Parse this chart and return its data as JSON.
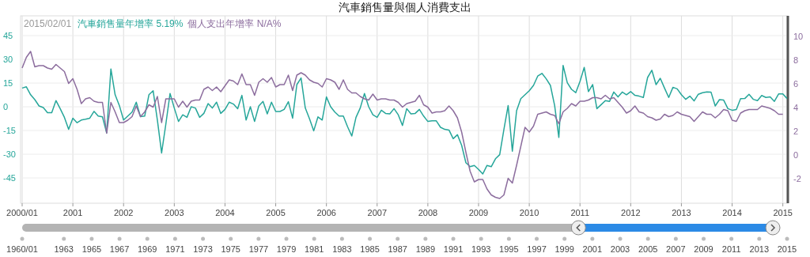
{
  "chart_data": [
    {
      "type": "line",
      "title": "汽車銷售量與個人消費支出",
      "annotations": [
        "2015/02/01"
      ],
      "legend": "top left",
      "grid": true,
      "marker": "none",
      "line_style": "solid",
      "x": [
        "2000-01",
        "2000-02",
        "2000-03",
        "2000-04",
        "2000-05",
        "2000-06",
        "2000-07",
        "2000-08",
        "2000-09",
        "2000-10",
        "2000-11",
        "2000-12",
        "2001-01",
        "2001-02",
        "2001-03",
        "2001-04",
        "2001-05",
        "2001-06",
        "2001-07",
        "2001-08",
        "2001-09",
        "2001-10",
        "2001-11",
        "2001-12",
        "2002-01",
        "2002-02",
        "2002-03",
        "2002-04",
        "2002-05",
        "2002-06",
        "2002-07",
        "2002-08",
        "2002-09",
        "2002-10",
        "2002-11",
        "2002-12",
        "2003-01",
        "2003-02",
        "2003-03",
        "2003-04",
        "2003-05",
        "2003-06",
        "2003-07",
        "2003-08",
        "2003-09",
        "2003-10",
        "2003-11",
        "2003-12",
        "2004-01",
        "2004-02",
        "2004-03",
        "2004-04",
        "2004-05",
        "2004-06",
        "2004-07",
        "2004-08",
        "2004-09",
        "2004-10",
        "2004-11",
        "2004-12",
        "2005-01",
        "2005-02",
        "2005-03",
        "2005-04",
        "2005-05",
        "2005-06",
        "2005-07",
        "2005-08",
        "2005-09",
        "2005-10",
        "2005-11",
        "2005-12",
        "2006-01",
        "2006-02",
        "2006-03",
        "2006-04",
        "2006-05",
        "2006-06",
        "2006-07",
        "2006-08",
        "2006-09",
        "2006-10",
        "2006-11",
        "2006-12",
        "2007-01",
        "2007-02",
        "2007-03",
        "2007-04",
        "2007-05",
        "2007-06",
        "2007-07",
        "2007-08",
        "2007-09",
        "2007-10",
        "2007-11",
        "2007-12",
        "2008-01",
        "2008-02",
        "2008-03",
        "2008-04",
        "2008-05",
        "2008-06",
        "2008-07",
        "2008-08",
        "2008-09",
        "2008-10",
        "2008-11",
        "2008-12",
        "2009-01",
        "2009-02",
        "2009-03",
        "2009-04",
        "2009-05",
        "2009-06",
        "2009-07",
        "2009-08",
        "2009-09",
        "2009-10",
        "2009-11",
        "2009-12",
        "2010-01",
        "2010-02",
        "2010-03",
        "2010-04",
        "2010-05",
        "2010-06",
        "2010-07",
        "2010-08",
        "2010-09",
        "2010-10",
        "2010-11",
        "2010-12",
        "2011-01",
        "2011-02",
        "2011-03",
        "2011-04",
        "2011-05",
        "2011-06",
        "2011-07",
        "2011-08",
        "2011-09",
        "2011-10",
        "2011-11",
        "2011-12",
        "2012-01",
        "2012-02",
        "2012-03",
        "2012-04",
        "2012-05",
        "2012-06",
        "2012-07",
        "2012-08",
        "2012-09",
        "2012-10",
        "2012-11",
        "2012-12",
        "2013-01",
        "2013-02",
        "2013-03",
        "2013-04",
        "2013-05",
        "2013-06",
        "2013-07",
        "2013-08",
        "2013-09",
        "2013-10",
        "2013-11",
        "2013-12",
        "2014-01",
        "2014-02",
        "2014-03",
        "2014-04",
        "2014-05",
        "2014-06",
        "2014-07",
        "2014-08",
        "2014-09",
        "2014-10",
        "2014-11",
        "2014-12",
        "2015-01",
        "2015-02"
      ],
      "xlim": [
        "2000-01",
        "2015-02"
      ],
      "xticks": [
        {
          "value": "2000-01",
          "label": "2000/01"
        },
        "2001",
        "2002",
        "2003",
        "2004",
        "2005",
        "2006",
        "2007",
        "2008",
        "2009",
        "2010",
        "2011",
        "2012",
        "2013",
        "2014",
        "2015"
      ],
      "ylim": [
        -61,
        57.5
      ],
      "yticks": [
        -45,
        -30,
        -15,
        0,
        15,
        30,
        45
      ],
      "y2lim": [
        -4.1,
        11.7
      ],
      "y2ticks": [
        -2,
        0,
        2,
        4,
        6,
        8,
        10
      ],
      "series": [
        {
          "name": "汽車銷售量年增率 5.19%",
          "color": "#26a69a",
          "axis": "y",
          "values": [
            11.8,
            12.6,
            7.6,
            4.5,
            0.5,
            -0.5,
            -3.7,
            -3.7,
            3.9,
            -1.2,
            -6.7,
            -14.3,
            -7.2,
            -10.1,
            -8.4,
            -7.9,
            -7.2,
            -2.9,
            -5.9,
            -6.4,
            -16.5,
            23.9,
            7.6,
            0.8,
            -8.4,
            -5.9,
            -3.4,
            2.9,
            -6.2,
            -5.9,
            7.6,
            10.1,
            -8.4,
            -29.2,
            -11,
            8.4,
            -0.8,
            -9.3,
            -5.1,
            -6.7,
            0,
            -0.8,
            -6.7,
            -4.2,
            2,
            -0.8,
            2.9,
            -4.2,
            -1.7,
            2.9,
            1.7,
            -1.2,
            7.2,
            -8.4,
            0,
            -9.3,
            0.5,
            3.4,
            -4.5,
            2.9,
            -3,
            -3,
            -1.7,
            3.2,
            -7.2,
            14,
            18.2,
            -0.8,
            -7.6,
            -15.2,
            -6.4,
            -8.4,
            6.2,
            0,
            -3.4,
            -5.9,
            -5.9,
            -12.6,
            -18.5,
            -6.7,
            -0.8,
            8.4,
            0,
            -5.1,
            -6.7,
            -2.2,
            -4.2,
            -4.5,
            -1.2,
            -5.1,
            -11.8,
            -1.2,
            -4.5,
            -4.2,
            -1.7,
            -5.9,
            -9.3,
            -8.9,
            -8.9,
            -13,
            -14.3,
            -14.7,
            -20.2,
            -17.7,
            -24.4,
            -35.4,
            -37.9,
            -37.1,
            -39.6,
            -42.5,
            -37.1,
            -37.9,
            -32.9,
            -30.3,
            -14.3,
            0.8,
            -28.1,
            -2.5,
            5.1,
            7.6,
            10.1,
            13.5,
            19.4,
            21.1,
            17.7,
            13.5,
            0.8,
            -19.4,
            26.1,
            15.2,
            11,
            8.9,
            16,
            24.9,
            9.6,
            14,
            -1.2,
            1.3,
            3.9,
            3.4,
            9.3,
            6.2,
            9.3,
            7.6,
            9.6,
            7.2,
            6.7,
            5.9,
            18.5,
            23.1,
            14,
            18,
            11.8,
            5.9,
            12.3,
            11.3,
            7.6,
            4.7,
            6.7,
            3.7,
            7.9,
            8.9,
            9.4,
            9.3,
            0.5,
            4.5,
            4.2,
            -1.2,
            -2.2,
            -1.7,
            5.1,
            5.2,
            7.9,
            4.7,
            3.9,
            7.1,
            5.9,
            6.2,
            3.4,
            8.1,
            8.1,
            5.19
          ]
        },
        {
          "name": "個人支出年增率 N/A%",
          "color": "#8c6d9e",
          "axis": "y2",
          "values": [
            7.3,
            8.2,
            8.7,
            7.4,
            7.5,
            7.5,
            7.3,
            7.2,
            7.6,
            7.3,
            7.0,
            6.0,
            6.4,
            5.5,
            4.3,
            4.7,
            4.8,
            4.5,
            4.4,
            4.4,
            1.8,
            4.4,
            3.6,
            2.7,
            2.7,
            2.9,
            3.2,
            4.1,
            3.2,
            3.6,
            4.2,
            4.0,
            4.9,
            2.7,
            4.7,
            4.7,
            4.7,
            4.0,
            4.5,
            4.0,
            4.5,
            4.6,
            4.6,
            5.5,
            5.7,
            5.4,
            5.7,
            5.3,
            5.8,
            6.3,
            6.2,
            5.9,
            6.8,
            5.9,
            5.9,
            5.0,
            6.1,
            6.4,
            6.1,
            6.5,
            5.7,
            5.9,
            5.9,
            6.7,
            5.4,
            6.7,
            6.9,
            6.7,
            6.3,
            6.1,
            6.0,
            5.7,
            6.4,
            6.3,
            6.1,
            5.5,
            6.3,
            5.5,
            5.2,
            5.2,
            4.9,
            4.7,
            4.6,
            5.1,
            4.6,
            4.7,
            4.7,
            4.6,
            4.6,
            4.4,
            4.0,
            4.3,
            4.4,
            4.5,
            5.0,
            4.2,
            4.0,
            3.5,
            3.6,
            3.6,
            3.7,
            4.1,
            3.7,
            3.1,
            1.9,
            0.2,
            -1.4,
            -2.3,
            -2.1,
            -2.1,
            -2.9,
            -3.4,
            -3.6,
            -3.7,
            -3.4,
            -2.0,
            -2.4,
            -0.9,
            0.7,
            2.3,
            1.9,
            2.4,
            3.4,
            3.5,
            3.6,
            3.4,
            3.3,
            2.6,
            3.6,
            3.9,
            4.3,
            4.1,
            4.5,
            4.5,
            4.6,
            4.8,
            4.8,
            4.7,
            5.0,
            4.7,
            4.8,
            4.4,
            4.0,
            3.5,
            3.7,
            4.1,
            3.6,
            3.5,
            3.2,
            3.1,
            2.9,
            3.0,
            3.4,
            3.2,
            3.3,
            3.6,
            3.4,
            3.3,
            3.2,
            2.8,
            3.2,
            3.6,
            3.4,
            3.4,
            3.1,
            3.4,
            3.8,
            3.7,
            2.9,
            2.8,
            3.5,
            3.7,
            3.8,
            3.8,
            3.8,
            4.1,
            4.0,
            3.9,
            3.7,
            3.4,
            3.4,
            null
          ]
        }
      ],
      "x2lim": [
        1960,
        2015
      ],
      "x2ticks": [
        {
          "value": 1960,
          "label": "1960/01"
        },
        1963,
        1965,
        1967,
        1969,
        1971,
        1973,
        1975,
        1977,
        1979,
        1981,
        1983,
        1985,
        1987,
        1989,
        1991,
        1993,
        1995,
        1997,
        1999,
        2001,
        2003,
        2005,
        2007,
        2009,
        2011,
        2013,
        2015
      ]
    }
  ]
}
